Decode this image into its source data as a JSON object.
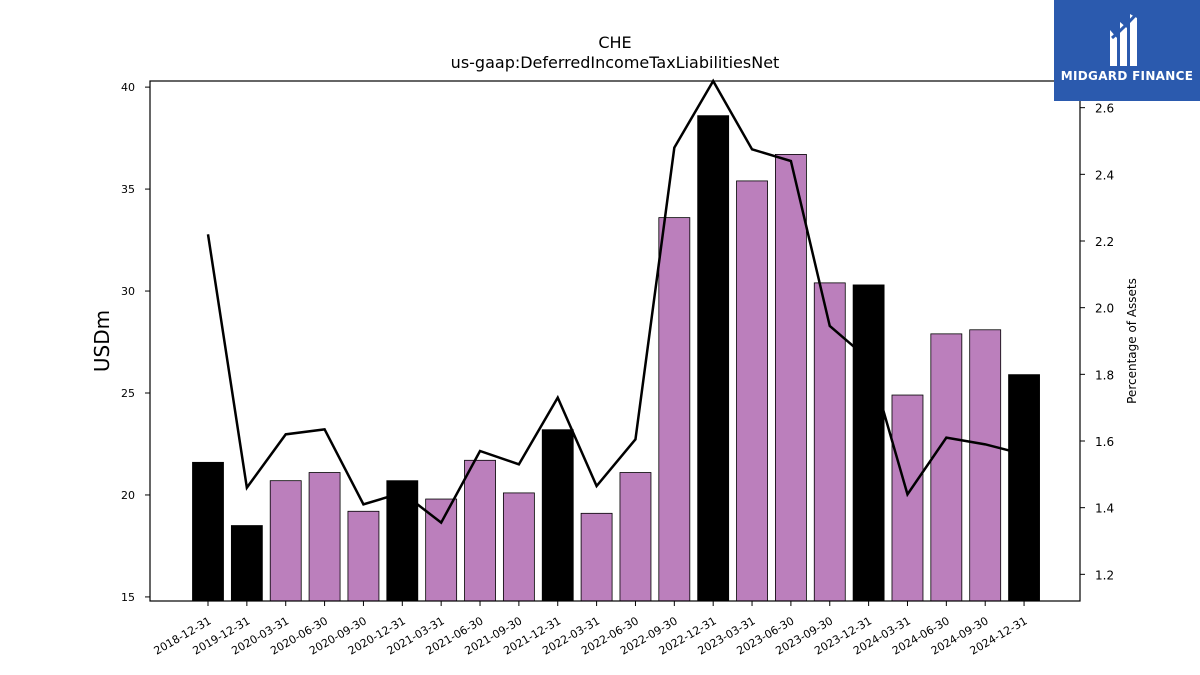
{
  "chart_data": {
    "type": "bar",
    "title": "CHE",
    "subtitle": "us-gaap:DeferredIncomeTaxLiabilitiesNet",
    "ylabel": "USDm",
    "y2label": "Percentage of Assets",
    "ylim": [
      14.8,
      40.3
    ],
    "y2lim": [
      1.12,
      2.68
    ],
    "yticks": [
      15,
      20,
      25,
      30,
      35,
      40
    ],
    "y2ticks": [
      1.2,
      1.4,
      1.6,
      1.8,
      2.0,
      2.2,
      2.4,
      2.6
    ],
    "categories": [
      "2018-12-31",
      "2019-12-31",
      "2020-03-31",
      "2020-06-30",
      "2020-09-30",
      "2020-12-31",
      "2021-03-31",
      "2021-06-30",
      "2021-09-30",
      "2021-12-31",
      "2022-03-31",
      "2022-06-30",
      "2022-09-30",
      "2022-12-31",
      "2023-03-31",
      "2023-06-30",
      "2023-09-30",
      "2023-12-31",
      "2024-03-31",
      "2024-06-30",
      "2024-09-30",
      "2024-12-31"
    ],
    "series": [
      {
        "type": "bar",
        "values": [
          21.6,
          18.5,
          20.7,
          21.1,
          19.2,
          20.7,
          19.8,
          21.7,
          20.1,
          23.2,
          19.1,
          21.1,
          33.6,
          38.6,
          35.4,
          36.7,
          30.4,
          30.3,
          24.9,
          27.9,
          28.1,
          25.9
        ],
        "annual": [
          true,
          true,
          false,
          false,
          false,
          true,
          false,
          false,
          false,
          true,
          false,
          false,
          false,
          true,
          false,
          false,
          false,
          true,
          false,
          false,
          false,
          true
        ],
        "color_annual": "#000000",
        "color_quarterly": "#bb7fbc"
      },
      {
        "type": "line",
        "axis": "right",
        "values": [
          2.22,
          1.46,
          1.62,
          1.635,
          1.41,
          1.445,
          1.355,
          1.57,
          1.53,
          1.73,
          1.465,
          1.605,
          2.48,
          2.68,
          2.475,
          2.44,
          1.945,
          1.845,
          1.44,
          1.61,
          1.59,
          1.56
        ],
        "color": "#000000"
      }
    ],
    "grid": false
  },
  "branding": {
    "logo_text": "MIDGARD FINANCE",
    "logo_icon": "midgard-logo-icon",
    "logo_bg": "#2b5aae"
  }
}
